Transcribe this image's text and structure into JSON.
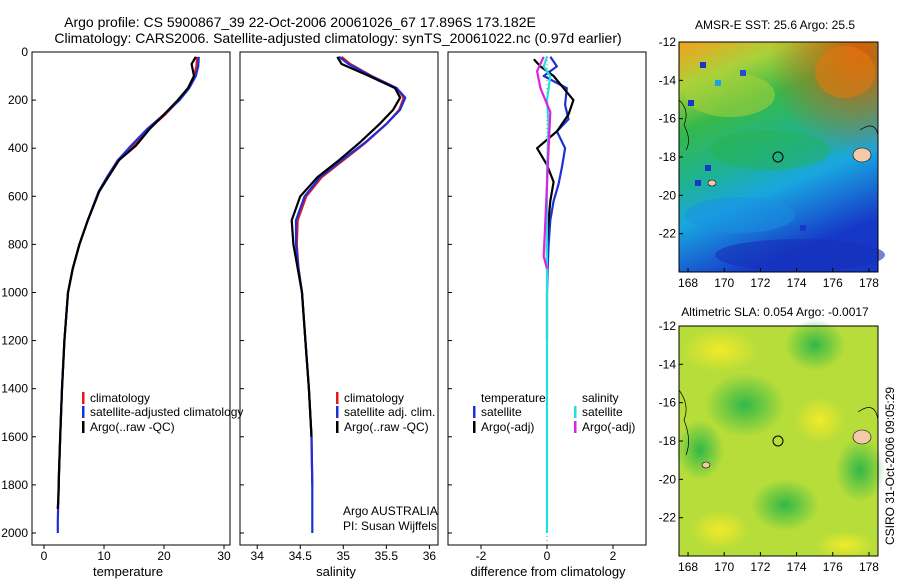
{
  "header": {
    "line1": "Argo profile: CS 5900867_39 22-Oct-2006 20061026_67 17.896S 173.182E",
    "line2": "Climatology: CARS2006. Satellite-adjusted climatology: synTS_20061022.nc (0.97d earlier)"
  },
  "side_label": "CSIRO 31-Oct-2006 09:05:29",
  "colors": {
    "climatology": "#e11b1b",
    "satellite": "#1f2fd8",
    "argo": "#000000",
    "sal_satellite": "#22e0e0",
    "sal_argo": "#e020e0"
  },
  "chart_data": [
    {
      "type": "line",
      "id": "temperature",
      "xlabel": "temperature",
      "ylabel": "",
      "xlim": [
        -2,
        31
      ],
      "ylim": [
        2050,
        0
      ],
      "xticks": [
        0,
        10,
        20,
        30
      ],
      "yticks": [
        0,
        200,
        400,
        600,
        800,
        1000,
        1200,
        1400,
        1600,
        1800,
        2000
      ],
      "grid": false,
      "series": [
        {
          "name": "climatology",
          "color": "#e11b1b",
          "x": [
            25.5,
            25.4,
            25.0,
            24.0,
            22.5,
            20.2,
            17.5,
            14.8,
            12.5,
            10.6,
            9.2,
            7.3,
            5.9,
            4.8,
            4.0,
            3.4,
            3.0,
            2.7,
            2.5,
            2.4,
            2.3
          ],
          "y": [
            20,
            60,
            100,
            150,
            200,
            260,
            320,
            390,
            450,
            520,
            580,
            700,
            800,
            900,
            1000,
            1200,
            1400,
            1600,
            1750,
            1850,
            1900
          ]
        },
        {
          "name": "satellite-adjusted climatology",
          "color": "#1f2fd8",
          "x": [
            25.8,
            25.7,
            25.3,
            24.2,
            22.6,
            20.0,
            17.2,
            14.5,
            12.3,
            10.5,
            9.1,
            7.3,
            5.9,
            4.8,
            4.0,
            3.4,
            3.0,
            2.7,
            2.5,
            2.4,
            2.3,
            2.3
          ],
          "y": [
            20,
            60,
            100,
            150,
            200,
            260,
            320,
            390,
            450,
            520,
            580,
            700,
            800,
            900,
            1000,
            1200,
            1400,
            1600,
            1750,
            1850,
            1950,
            2000
          ]
        },
        {
          "name": "Argo(..raw -QC)",
          "color": "#000000",
          "x": [
            25.3,
            24.6,
            25.0,
            24.0,
            22.3,
            20.0,
            17.6,
            15.3,
            12.5,
            10.7,
            9.2,
            7.3,
            5.9,
            4.8,
            4.0,
            3.4,
            3.0,
            2.7,
            2.5,
            2.4,
            2.3
          ],
          "y": [
            20,
            50,
            100,
            150,
            200,
            260,
            320,
            390,
            450,
            520,
            580,
            700,
            800,
            900,
            1000,
            1200,
            1400,
            1600,
            1750,
            1850,
            1900
          ]
        }
      ],
      "legend": [
        "climatology",
        "satellite-adjusted climatology",
        "Argo(..raw -QC)"
      ],
      "legend_position": "lower-right"
    },
    {
      "type": "line",
      "id": "salinity",
      "xlabel": "salinity",
      "ylabel": "",
      "xlim": [
        33.8,
        36.1
      ],
      "ylim": [
        2050,
        0
      ],
      "xticks": [
        34,
        34.5,
        35,
        35.5,
        36
      ],
      "yticks": [
        0,
        200,
        400,
        600,
        800,
        1000,
        1200,
        1400,
        1600,
        1800,
        2000
      ],
      "grid": false,
      "series": [
        {
          "name": "climatology",
          "color": "#e11b1b",
          "x": [
            34.98,
            35.08,
            35.33,
            35.62,
            35.7,
            35.65,
            35.5,
            35.25,
            35.0,
            34.75,
            34.57,
            34.47,
            34.46,
            34.48,
            34.52,
            34.56,
            34.6,
            34.63,
            34.64
          ],
          "y": [
            20,
            50,
            100,
            150,
            190,
            240,
            300,
            380,
            450,
            520,
            600,
            700,
            800,
            900,
            1000,
            1200,
            1400,
            1600,
            1800
          ]
        },
        {
          "name": "satellite adj. clim.",
          "color": "#1f2fd8",
          "x": [
            34.95,
            35.06,
            35.32,
            35.62,
            35.72,
            35.66,
            35.5,
            35.24,
            34.98,
            34.73,
            34.55,
            34.45,
            34.45,
            34.48,
            34.52,
            34.56,
            34.6,
            34.63,
            34.64,
            34.64
          ],
          "y": [
            20,
            50,
            100,
            150,
            190,
            240,
            300,
            380,
            450,
            520,
            600,
            700,
            800,
            900,
            1000,
            1200,
            1400,
            1600,
            1800,
            2000
          ]
        },
        {
          "name": "Argo(..raw -QC)",
          "color": "#000000",
          "x": [
            34.93,
            34.98,
            35.3,
            35.6,
            35.66,
            35.58,
            35.42,
            35.18,
            34.95,
            34.7,
            34.5,
            34.4,
            34.42,
            34.47,
            34.52,
            34.56,
            34.6,
            34.63
          ],
          "y": [
            20,
            50,
            100,
            150,
            190,
            240,
            300,
            380,
            450,
            520,
            600,
            700,
            800,
            900,
            1000,
            1200,
            1400,
            1600
          ]
        }
      ],
      "legend": [
        "climatology",
        "satellite adj. clim.",
        "Argo(..raw -QC)"
      ],
      "legend_position": "lower-right",
      "annotation": [
        "Argo AUSTRALIA",
        "PI: Susan Wijffels"
      ]
    },
    {
      "type": "line",
      "id": "difference",
      "xlabel": "difference from climatology",
      "ylabel": "",
      "xlim": [
        -3,
        3
      ],
      "ylim": [
        2050,
        0
      ],
      "xticks": [
        -2,
        0,
        2
      ],
      "yticks": [
        0,
        200,
        400,
        600,
        800,
        1000,
        1200,
        1400,
        1600,
        1800,
        2000
      ],
      "grid": false,
      "series": [
        {
          "name": "temperature satellite",
          "color": "#1f2fd8",
          "x": [
            0.1,
            0.3,
            -0.1,
            0.6,
            0.55,
            0.65,
            0.3,
            0.55,
            0.45,
            0.35,
            0.2,
            0.1,
            0.05,
            0.02,
            0.0,
            0.0
          ],
          "y": [
            20,
            60,
            100,
            150,
            220,
            280,
            330,
            400,
            480,
            550,
            620,
            700,
            800,
            900,
            1000,
            1200
          ]
        },
        {
          "name": "temperature Argo(-adj)",
          "color": "#000000",
          "x": [
            -0.4,
            -0.2,
            0.2,
            0.5,
            0.8,
            0.65,
            0.3,
            -0.3,
            0.0,
            0.2,
            0.1,
            0.05,
            0.0,
            0.0
          ],
          "y": [
            30,
            60,
            100,
            150,
            200,
            260,
            330,
            400,
            470,
            540,
            620,
            700,
            800,
            900
          ]
        },
        {
          "name": "salinity satellite",
          "color": "#22e0e0",
          "x": [
            0.0,
            -0.1,
            0.1,
            0.0,
            0.05,
            0.0,
            0.0,
            0.0,
            0.0,
            0.0
          ],
          "y": [
            20,
            60,
            100,
            200,
            300,
            500,
            800,
            1200,
            1600,
            2000
          ]
        },
        {
          "name": "salinity Argo(-adj)",
          "color": "#e020e0",
          "x": [
            -0.1,
            -0.3,
            -0.2,
            0.1,
            0.05,
            0.0,
            -0.05,
            -0.1,
            0.0
          ],
          "y": [
            20,
            80,
            150,
            250,
            400,
            550,
            700,
            850,
            900
          ]
        }
      ],
      "legend_groups": [
        {
          "title": "temperature",
          "items": [
            "satellite",
            "Argo(-adj)"
          ]
        },
        {
          "title": "salinity",
          "items": [
            "satellite",
            "Argo(-adj)"
          ]
        }
      ],
      "legend_position": "lower-center"
    },
    {
      "type": "heatmap",
      "id": "sst-map",
      "title": "AMSR-E SST: 25.6 Argo: 25.5",
      "xlim": [
        167.5,
        178.5
      ],
      "ylim": [
        -24,
        -12
      ],
      "xticks": [
        168,
        170,
        172,
        174,
        176,
        178
      ],
      "yticks": [
        -12,
        -14,
        -16,
        -18,
        -20,
        -22
      ],
      "argo_position": {
        "lon": 173.182,
        "lat": -17.896
      }
    },
    {
      "type": "heatmap",
      "id": "sla-map",
      "title": "Altimetric SLA: 0.054 Argo: -0.0017",
      "xlim": [
        167.5,
        178.5
      ],
      "ylim": [
        -24,
        -12
      ],
      "xticks": [
        168,
        170,
        172,
        174,
        176,
        178
      ],
      "yticks": [
        -12,
        -14,
        -16,
        -18,
        -20,
        -22
      ],
      "argo_position": {
        "lon": 173.182,
        "lat": -17.896
      }
    }
  ]
}
